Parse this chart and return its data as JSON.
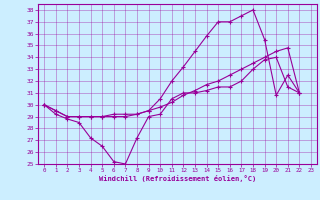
{
  "xlabel": "Windchill (Refroidissement éolien,°C)",
  "bg_color": "#cceeff",
  "line_color": "#990099",
  "xlim": [
    -0.5,
    23.5
  ],
  "ylim": [
    25,
    38.5
  ],
  "xticks": [
    0,
    1,
    2,
    3,
    4,
    5,
    6,
    7,
    8,
    9,
    10,
    11,
    12,
    13,
    14,
    15,
    16,
    17,
    18,
    19,
    20,
    21,
    22,
    23
  ],
  "yticks": [
    25,
    26,
    27,
    28,
    29,
    30,
    31,
    32,
    33,
    34,
    35,
    36,
    37,
    38
  ],
  "series": [
    {
      "x": [
        0,
        1,
        2,
        3,
        4,
        5,
        6,
        7,
        8,
        9,
        10,
        11,
        12,
        13,
        14,
        15,
        16,
        17,
        18,
        19,
        20,
        21,
        22
      ],
      "y": [
        30.0,
        29.2,
        28.8,
        28.5,
        27.2,
        26.5,
        25.2,
        25.0,
        27.2,
        29.0,
        29.2,
        30.5,
        31.0,
        31.0,
        31.2,
        31.5,
        31.5,
        32.0,
        33.0,
        33.8,
        34.0,
        31.5,
        31.0
      ]
    },
    {
      "x": [
        0,
        1,
        2,
        3,
        4,
        5,
        6,
        7,
        8,
        9,
        10,
        11,
        12,
        13,
        14,
        15,
        16,
        17,
        18,
        19,
        20,
        21,
        22
      ],
      "y": [
        30.0,
        29.5,
        29.0,
        29.0,
        29.0,
        29.0,
        29.2,
        29.2,
        29.2,
        29.5,
        29.8,
        30.2,
        30.8,
        31.2,
        31.7,
        32.0,
        32.5,
        33.0,
        33.5,
        34.0,
        34.5,
        34.8,
        31.0
      ]
    },
    {
      "x": [
        0,
        1,
        2,
        3,
        4,
        5,
        6,
        7,
        8,
        9,
        10,
        11,
        12,
        13,
        14,
        15,
        16,
        17,
        18,
        19,
        20,
        21,
        22
      ],
      "y": [
        30.0,
        29.5,
        29.0,
        29.0,
        29.0,
        29.0,
        29.0,
        29.0,
        29.2,
        29.5,
        30.5,
        32.0,
        33.2,
        34.5,
        35.8,
        37.0,
        37.0,
        37.5,
        38.0,
        35.5,
        30.8,
        32.5,
        31.0
      ]
    }
  ]
}
